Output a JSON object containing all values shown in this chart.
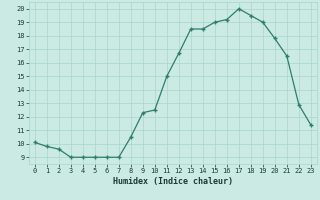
{
  "x": [
    0,
    1,
    2,
    3,
    4,
    5,
    6,
    7,
    8,
    9,
    10,
    11,
    12,
    13,
    14,
    15,
    16,
    17,
    18,
    19,
    20,
    21,
    22,
    23
  ],
  "y": [
    10.1,
    9.8,
    9.6,
    9.0,
    9.0,
    9.0,
    9.0,
    9.0,
    10.5,
    12.3,
    12.5,
    15.0,
    16.7,
    18.5,
    18.5,
    19.0,
    19.2,
    20.0,
    19.5,
    19.0,
    17.8,
    16.5,
    12.9,
    11.4
  ],
  "xlabel": "Humidex (Indice chaleur)",
  "xlim": [
    -0.5,
    23.5
  ],
  "ylim": [
    8.5,
    20.5
  ],
  "line_color": "#2e7d6e",
  "marker": "+",
  "bg_color": "#cceae4",
  "grid_color": "#a8d5cc",
  "tick_label_color": "#1a3c38",
  "xlabel_color": "#1a3c38",
  "xticks": [
    0,
    1,
    2,
    3,
    4,
    5,
    6,
    7,
    8,
    9,
    10,
    11,
    12,
    13,
    14,
    15,
    16,
    17,
    18,
    19,
    20,
    21,
    22,
    23
  ],
  "yticks": [
    9,
    10,
    11,
    12,
    13,
    14,
    15,
    16,
    17,
    18,
    19,
    20
  ]
}
